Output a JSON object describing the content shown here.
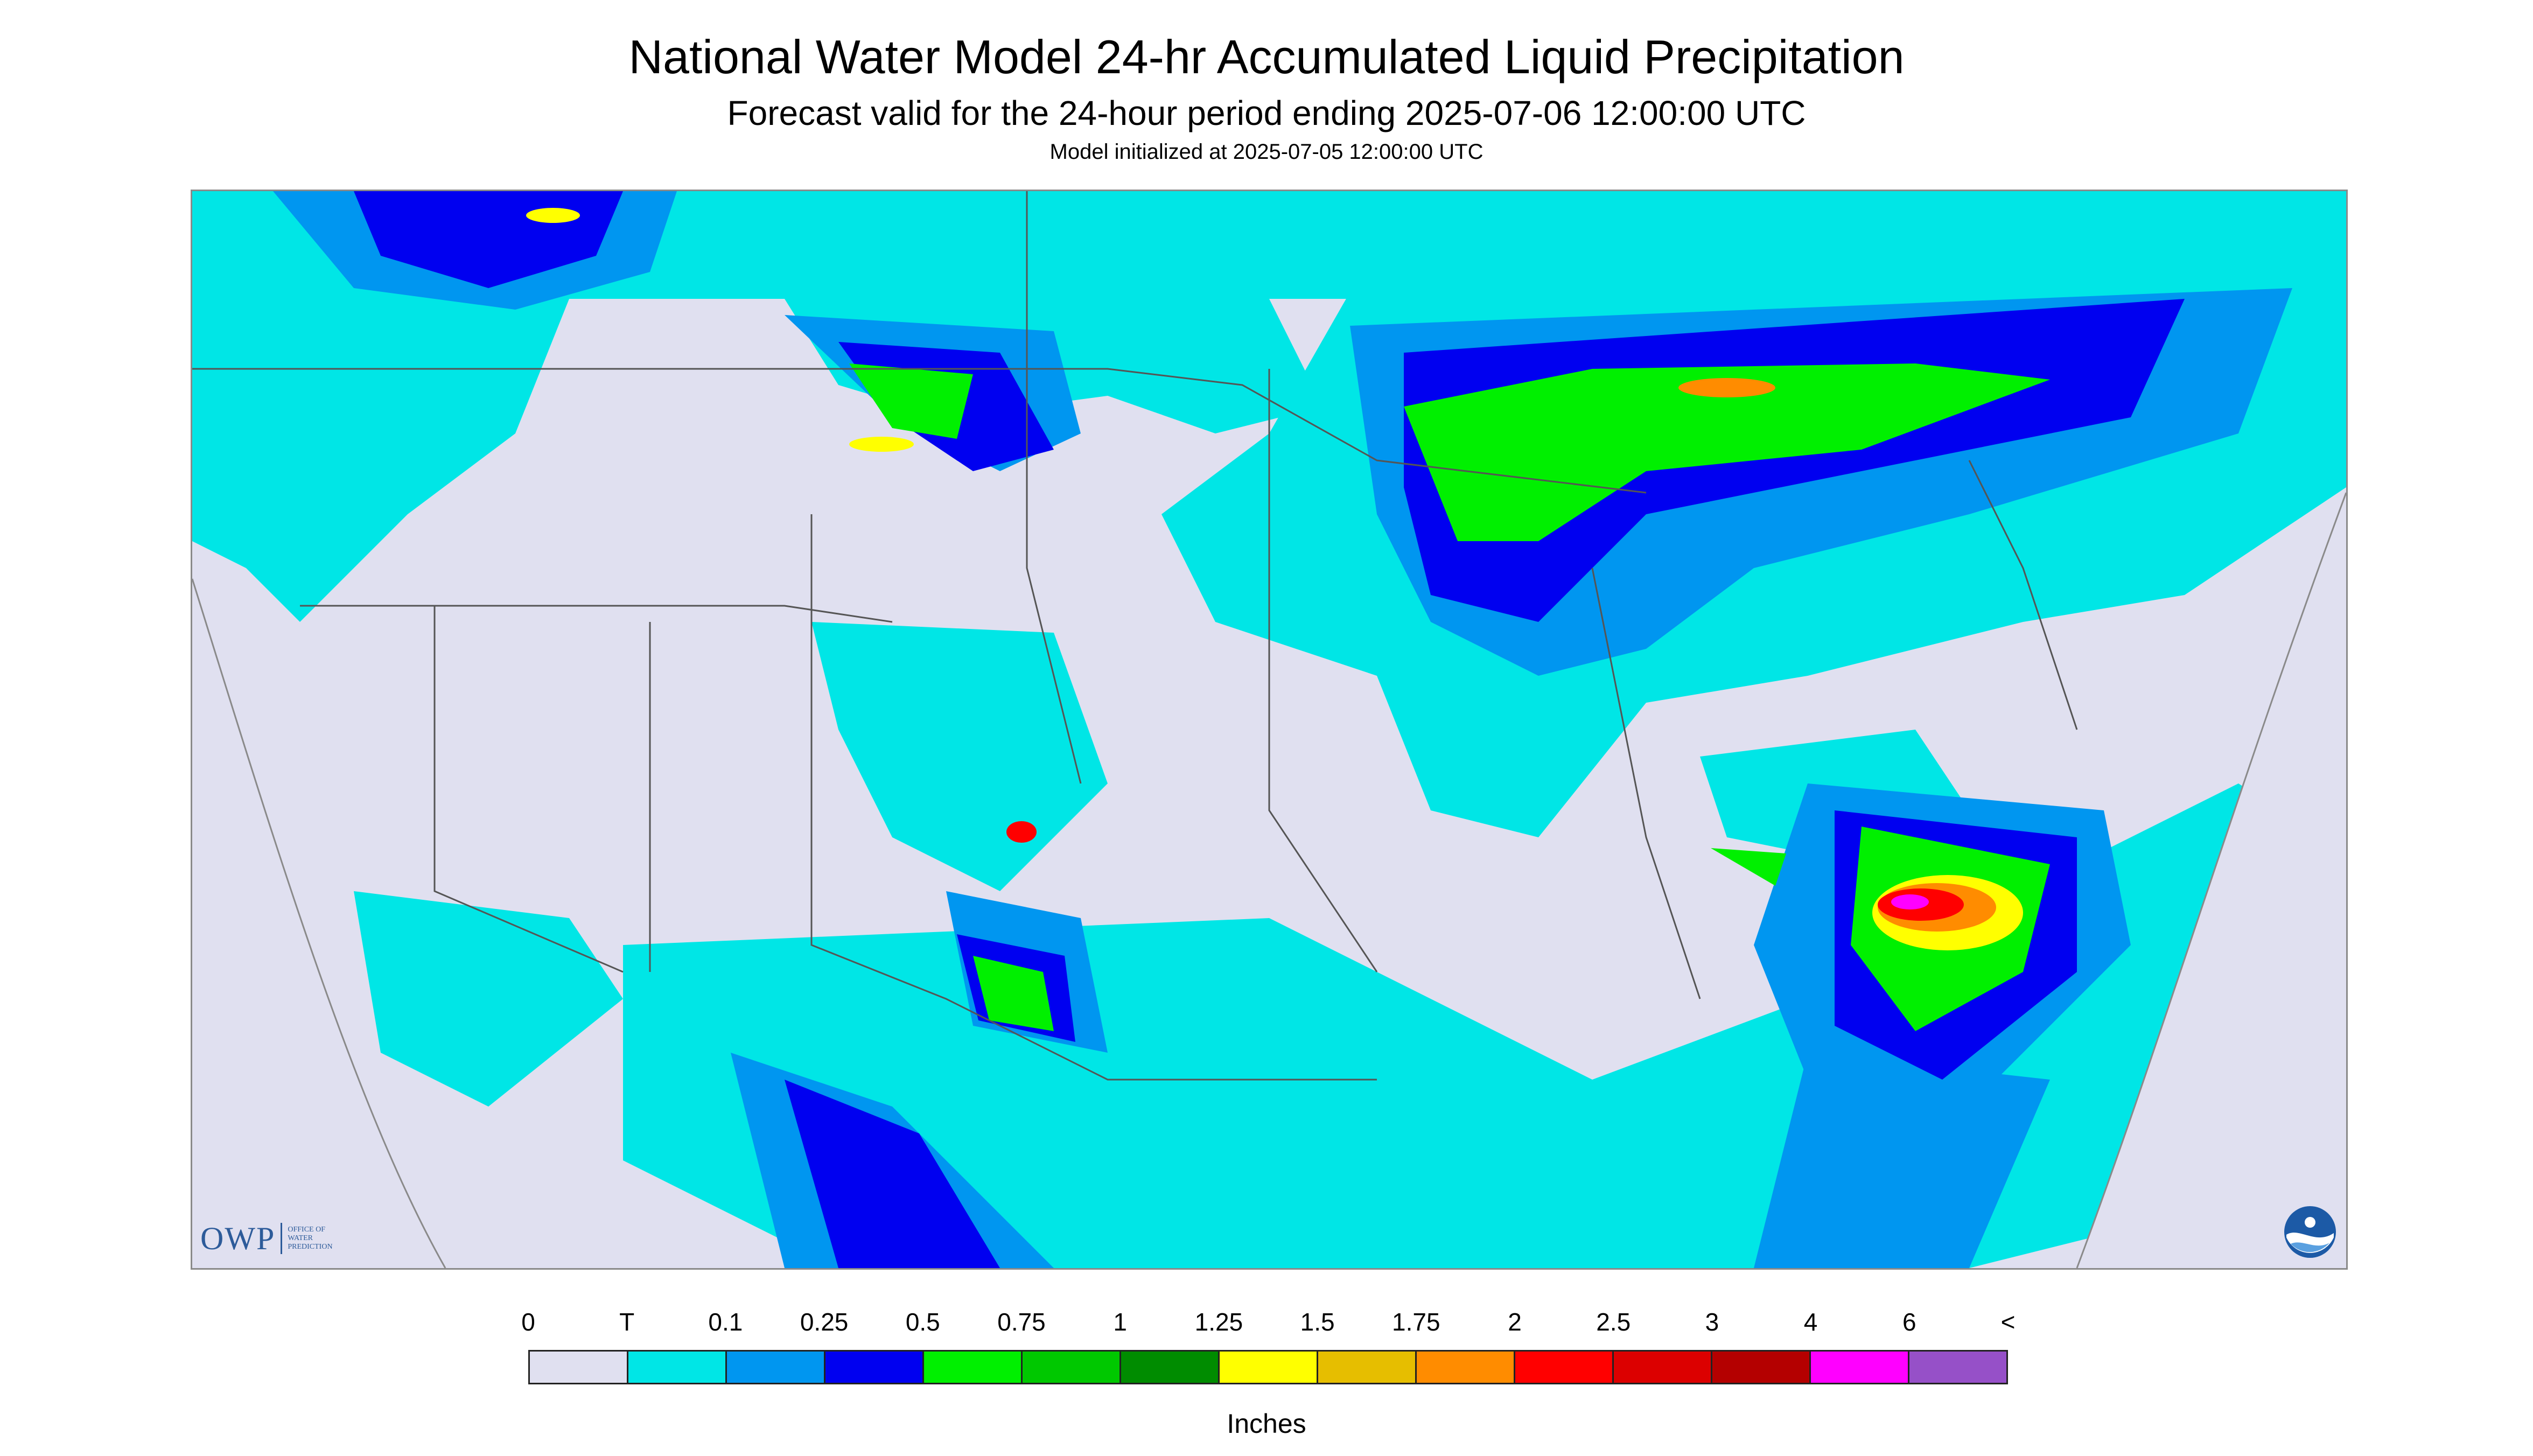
{
  "title": "National Water Model 24-hr Accumulated Liquid Precipitation",
  "subtitle": "Forecast valid for the 24-hour period ending 2025-07-06 12:00:00 UTC",
  "init": "Model initialized at 2025-07-05 12:00:00 UTC",
  "logo": {
    "owp_mark": "OWP",
    "owp_line1": "OFFICE OF",
    "owp_line2": "WATER",
    "owp_line3": "PREDICTION",
    "noaa": "NOAA"
  },
  "legend": {
    "units": "Inches",
    "labels": [
      "0",
      "T",
      "0.1",
      "0.25",
      "0.5",
      "0.75",
      "1",
      "1.25",
      "1.5",
      "1.75",
      "2",
      "2.5",
      "3",
      "4",
      "6",
      "<"
    ],
    "colors": [
      "#e0e0f0",
      "#00e6e6",
      "#0096f0",
      "#0000f0",
      "#00f000",
      "#00c800",
      "#008c00",
      "#ffff00",
      "#e6be00",
      "#ff8c00",
      "#ff0000",
      "#dc0000",
      "#b40000",
      "#ff00ff",
      "#9650c8"
    ]
  }
}
